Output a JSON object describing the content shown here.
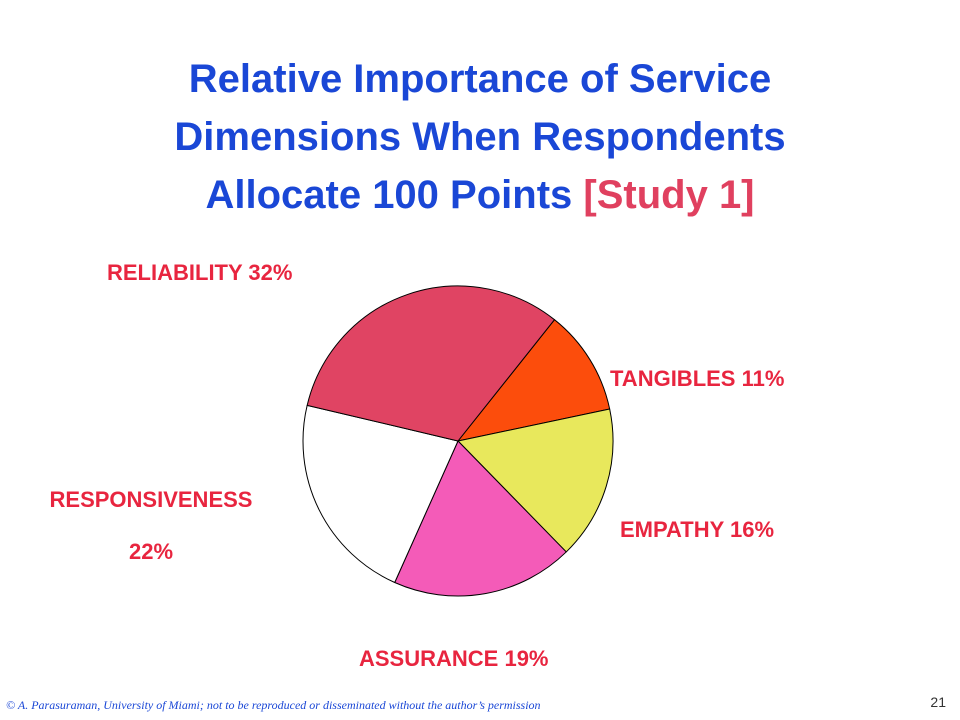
{
  "slide": {
    "title_line1": "Relative Importance of Service",
    "title_line2": "Dimensions When Respondents",
    "title_line3_main": "Allocate 100 Points ",
    "title_line3_highlight": "[Study 1]",
    "footer": "© A. Parasuraman, University of Miami; not to be reproduced or disseminated without the author’s permission",
    "page_number": "21"
  },
  "labels": {
    "reliability": "RELIABILITY 32%",
    "tangibles": "TANGIBLES 11%",
    "empathy": "EMPATHY 16%",
    "assurance": "ASSURANCE 19%",
    "responsiveness_line1": "RESPONSIVENESS",
    "responsiveness_line2": "22%"
  },
  "colors": {
    "title": "#1a47d6",
    "highlight": "#e0405f",
    "label": "#e8253f"
  },
  "chart_data": {
    "type": "pie",
    "title": "Relative Importance of Service Dimensions When Respondents Allocate 100 Points [Study 1]",
    "unit": "%",
    "slices": [
      {
        "name": "TANGIBLES",
        "value": 11,
        "color": "#fc4d0c"
      },
      {
        "name": "EMPATHY",
        "value": 16,
        "color": "#e8e85c"
      },
      {
        "name": "ASSURANCE",
        "value": 19,
        "color": "#f45bb8"
      },
      {
        "name": "RESPONSIVENESS",
        "value": 22,
        "color": "#ffffff"
      },
      {
        "name": "RELIABILITY",
        "value": 32,
        "color": "#e04463"
      }
    ]
  }
}
